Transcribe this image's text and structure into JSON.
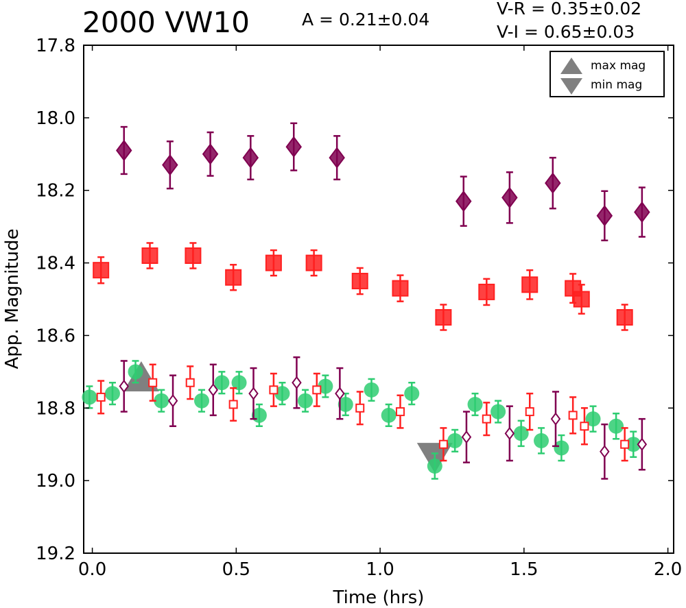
{
  "header": {
    "title": "2000 VW10",
    "amplitude": "A  = 0.21±0.04",
    "color_vr": "V-R = 0.35±0.02",
    "color_vi": "V-I  = 0.65±0.03"
  },
  "legend": {
    "max_label": "max mag",
    "min_label": "min mag",
    "marker_color": "#808080"
  },
  "chart_data": {
    "type": "scatter",
    "xlabel": "Time (hrs)",
    "ylabel": "App. Magnitude",
    "xlim": [
      -0.03,
      2.02
    ],
    "ylim": [
      19.2,
      17.8
    ],
    "inverted_y": true,
    "xticks": [
      "0.0",
      "0.5",
      "1.0",
      "1.5",
      "2.0"
    ],
    "xtick_values": [
      0.0,
      0.5,
      1.0,
      1.5,
      2.0
    ],
    "yticks": [
      "17.8",
      "18.0",
      "18.2",
      "18.4",
      "18.6",
      "18.8",
      "19.0",
      "19.2"
    ],
    "ytick_values": [
      17.8,
      18.0,
      18.2,
      18.4,
      18.6,
      18.8,
      19.0,
      19.2
    ],
    "grid": false,
    "legend_position": "top-right",
    "series": [
      {
        "key": "I_filled",
        "marker": "diamond",
        "filled": true,
        "color": "#800050",
        "points": [
          [
            0.11,
            18.09,
            0.065
          ],
          [
            0.27,
            18.13,
            0.065
          ],
          [
            0.41,
            18.1,
            0.06
          ],
          [
            0.55,
            18.11,
            0.06
          ],
          [
            0.7,
            18.08,
            0.065
          ],
          [
            0.85,
            18.11,
            0.06
          ],
          [
            1.29,
            18.23,
            0.068
          ],
          [
            1.45,
            18.22,
            0.07
          ],
          [
            1.6,
            18.18,
            0.07
          ],
          [
            1.78,
            18.27,
            0.068
          ],
          [
            1.91,
            18.26,
            0.068
          ]
        ]
      },
      {
        "key": "R_filled",
        "marker": "square",
        "filled": true,
        "color": "#ff2020",
        "points": [
          [
            0.03,
            18.42,
            0.036
          ],
          [
            0.2,
            18.38,
            0.035
          ],
          [
            0.35,
            18.38,
            0.035
          ],
          [
            0.49,
            18.44,
            0.035
          ],
          [
            0.63,
            18.4,
            0.035
          ],
          [
            0.77,
            18.4,
            0.035
          ],
          [
            0.93,
            18.45,
            0.036
          ],
          [
            1.07,
            18.47,
            0.036
          ],
          [
            1.22,
            18.55,
            0.035
          ],
          [
            1.37,
            18.48,
            0.036
          ],
          [
            1.52,
            18.46,
            0.04
          ],
          [
            1.67,
            18.47,
            0.04
          ],
          [
            1.7,
            18.5,
            0.04
          ],
          [
            1.85,
            18.55,
            0.035
          ]
        ]
      },
      {
        "key": "V_circles",
        "marker": "circle",
        "filled": true,
        "color": "#2ecc71",
        "points": [
          [
            -0.01,
            18.77,
            0.03
          ],
          [
            0.07,
            18.76,
            0.03
          ],
          [
            0.15,
            18.7,
            0.03
          ],
          [
            0.24,
            18.78,
            0.03
          ],
          [
            0.38,
            18.78,
            0.03
          ],
          [
            0.45,
            18.73,
            0.03
          ],
          [
            0.51,
            18.73,
            0.03
          ],
          [
            0.58,
            18.82,
            0.03
          ],
          [
            0.66,
            18.76,
            0.03
          ],
          [
            0.74,
            18.78,
            0.03
          ],
          [
            0.81,
            18.74,
            0.03
          ],
          [
            0.88,
            18.79,
            0.03
          ],
          [
            0.97,
            18.75,
            0.03
          ],
          [
            1.03,
            18.82,
            0.03
          ],
          [
            1.11,
            18.76,
            0.03
          ],
          [
            1.19,
            18.96,
            0.035
          ],
          [
            1.26,
            18.89,
            0.03
          ],
          [
            1.33,
            18.79,
            0.03
          ],
          [
            1.41,
            18.81,
            0.03
          ],
          [
            1.49,
            18.87,
            0.035
          ],
          [
            1.56,
            18.89,
            0.035
          ],
          [
            1.63,
            18.91,
            0.035
          ],
          [
            1.74,
            18.83,
            0.035
          ],
          [
            1.82,
            18.85,
            0.035
          ],
          [
            1.88,
            18.9,
            0.035
          ]
        ]
      },
      {
        "key": "R_open",
        "marker": "square",
        "filled": false,
        "color": "#ff2020",
        "points": [
          [
            0.03,
            18.77,
            0.045
          ],
          [
            0.21,
            18.73,
            0.05
          ],
          [
            0.34,
            18.73,
            0.045
          ],
          [
            0.49,
            18.79,
            0.045
          ],
          [
            0.63,
            18.75,
            0.045
          ],
          [
            0.78,
            18.75,
            0.045
          ],
          [
            0.93,
            18.8,
            0.045
          ],
          [
            1.07,
            18.81,
            0.045
          ],
          [
            1.22,
            18.9,
            0.045
          ],
          [
            1.37,
            18.83,
            0.045
          ],
          [
            1.52,
            18.81,
            0.05
          ],
          [
            1.67,
            18.82,
            0.05
          ],
          [
            1.71,
            18.85,
            0.05
          ],
          [
            1.85,
            18.9,
            0.045
          ]
        ]
      },
      {
        "key": "I_open",
        "marker": "diamond",
        "filled": false,
        "color": "#800050",
        "points": [
          [
            0.11,
            18.74,
            0.07
          ],
          [
            0.28,
            18.78,
            0.07
          ],
          [
            0.42,
            18.75,
            0.07
          ],
          [
            0.56,
            18.76,
            0.07
          ],
          [
            0.71,
            18.73,
            0.07
          ],
          [
            0.86,
            18.76,
            0.07
          ],
          [
            1.3,
            18.88,
            0.07
          ],
          [
            1.45,
            18.87,
            0.075
          ],
          [
            1.61,
            18.83,
            0.075
          ],
          [
            1.78,
            18.92,
            0.075
          ],
          [
            1.91,
            18.9,
            0.07
          ]
        ]
      }
    ],
    "markers": {
      "max_mag": [
        0.17,
        18.72
      ],
      "min_mag": [
        1.19,
        18.93
      ]
    }
  }
}
